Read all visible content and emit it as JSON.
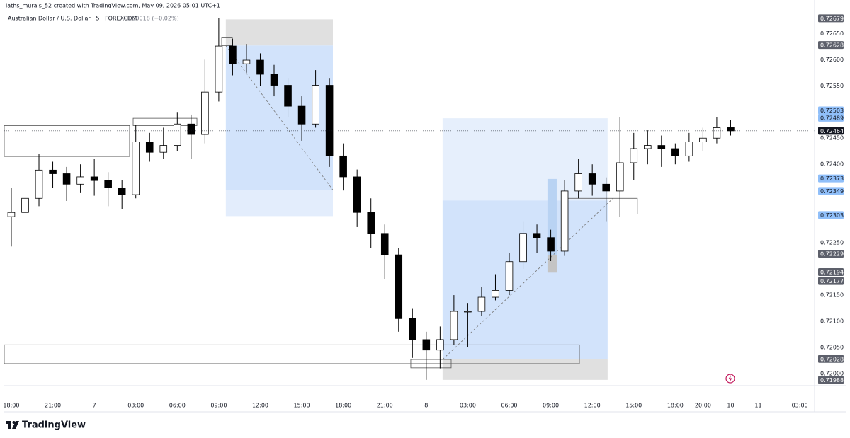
{
  "header": {
    "credit": "laths_murals_52 created with TradingView.com, May 09, 2026 05:01 UTC+1",
    "symbol": "Australian Dollar / U.S. Dollar · 5 · FOREXCOM",
    "change": "−0.00018 (−0.02%)"
  },
  "logo": "TradingView",
  "chart_data": {
    "type": "candlestick",
    "up_color": "#ffffff",
    "down_color": "#000000",
    "wick_color": "#000000",
    "x": [
      0,
      1,
      2,
      3,
      4,
      5,
      6,
      7,
      8,
      9,
      10,
      11,
      12,
      13,
      14,
      15,
      16,
      17,
      18,
      19,
      20,
      21,
      22,
      23,
      24,
      25,
      26,
      27,
      28,
      29,
      30,
      31,
      32,
      33,
      34,
      35,
      36,
      37,
      38,
      39,
      40,
      41,
      42,
      43,
      44,
      45,
      46,
      47,
      48,
      49,
      50,
      51,
      52
    ],
    "open": [
      0.723,
      0.72308,
      0.72335,
      0.72389,
      0.72382,
      0.72362,
      0.72376,
      0.72369,
      0.72355,
      0.72342,
      0.72443,
      0.72423,
      0.72436,
      0.72477,
      0.72457,
      0.72538,
      0.72626,
      0.72592,
      0.72599,
      0.72572,
      0.72551,
      0.72511,
      0.72477,
      0.72551,
      0.72416,
      0.72376,
      0.72308,
      0.72268,
      0.72227,
      0.72105,
      0.72065,
      0.72045,
      0.72065,
      0.72119,
      0.72119,
      0.72146,
      0.72159,
      0.72214,
      0.72268,
      0.7226,
      0.72234,
      0.72349,
      0.72382,
      0.72362,
      0.72349,
      0.72403,
      0.7243,
      0.72436,
      0.7243,
      0.72416,
      0.72443,
      0.7245,
      0.7247
    ],
    "high": [
      0.72355,
      0.7236,
      0.7242,
      0.72405,
      0.72395,
      0.724,
      0.7241,
      0.72385,
      0.7237,
      0.72475,
      0.7246,
      0.7247,
      0.725,
      0.72495,
      0.726,
      0.72679,
      0.7264,
      0.7263,
      0.72612,
      0.7259,
      0.72565,
      0.7253,
      0.7258,
      0.72565,
      0.7244,
      0.7239,
      0.72335,
      0.72285,
      0.7224,
      0.72125,
      0.7208,
      0.7209,
      0.7215,
      0.72135,
      0.72165,
      0.7219,
      0.7223,
      0.7229,
      0.72285,
      0.72275,
      0.7237,
      0.7241,
      0.724,
      0.72375,
      0.7249,
      0.7246,
      0.72465,
      0.72455,
      0.7244,
      0.7246,
      0.7247,
      0.7249,
      0.72485
    ],
    "low": [
      0.72243,
      0.7229,
      0.7232,
      0.72355,
      0.7233,
      0.72345,
      0.7234,
      0.7232,
      0.72315,
      0.72335,
      0.72405,
      0.7241,
      0.72425,
      0.7241,
      0.7244,
      0.7252,
      0.7257,
      0.72575,
      0.7255,
      0.7253,
      0.7249,
      0.72445,
      0.7247,
      0.72395,
      0.7235,
      0.7228,
      0.7224,
      0.7218,
      0.7208,
      0.7203,
      0.71988,
      0.7201,
      0.72055,
      0.7205,
      0.7211,
      0.7214,
      0.7215,
      0.722,
      0.7223,
      0.72215,
      0.72225,
      0.72335,
      0.7234,
      0.7229,
      0.723,
      0.7237,
      0.724,
      0.72395,
      0.724,
      0.72405,
      0.72425,
      0.7244,
      0.72455
    ],
    "close": [
      0.72308,
      0.72335,
      0.72389,
      0.72382,
      0.72362,
      0.72376,
      0.72369,
      0.72355,
      0.72342,
      0.72443,
      0.72423,
      0.72436,
      0.72477,
      0.72457,
      0.72538,
      0.72626,
      0.72592,
      0.72599,
      0.72572,
      0.72551,
      0.72511,
      0.72477,
      0.72551,
      0.72416,
      0.72376,
      0.72308,
      0.72268,
      0.72227,
      0.72105,
      0.72065,
      0.72045,
      0.72065,
      0.72119,
      0.72119,
      0.72146,
      0.72159,
      0.72214,
      0.72268,
      0.7226,
      0.72234,
      0.72349,
      0.72382,
      0.72362,
      0.72349,
      0.72403,
      0.7243,
      0.72436,
      0.7243,
      0.72416,
      0.72443,
      0.7245,
      0.7247,
      0.72464
    ],
    "xlim": [
      -0.51,
      58.07
    ],
    "ylim": [
      0.71977,
      0.72714
    ],
    "xticks": [
      {
        "value": 0,
        "label": "18:00"
      },
      {
        "value": 3,
        "label": "21:00"
      },
      {
        "value": 6,
        "label": "7"
      },
      {
        "value": 9,
        "label": "03:00"
      },
      {
        "value": 12,
        "label": "06:00"
      },
      {
        "value": 15,
        "label": "09:00"
      },
      {
        "value": 18,
        "label": "12:00"
      },
      {
        "value": 21,
        "label": "15:00"
      },
      {
        "value": 24,
        "label": "18:00"
      },
      {
        "value": 27,
        "label": "21:00"
      },
      {
        "value": 30,
        "label": "8"
      },
      {
        "value": 33,
        "label": "03:00"
      },
      {
        "value": 36,
        "label": "06:00"
      },
      {
        "value": 39,
        "label": "09:00"
      },
      {
        "value": 42,
        "label": "12:00"
      },
      {
        "value": 45,
        "label": "15:00"
      },
      {
        "value": 48,
        "label": "18:00"
      },
      {
        "value": 50,
        "label": "20:00"
      },
      {
        "value": 52,
        "label": "10"
      },
      {
        "value": 54,
        "label": "11"
      },
      {
        "value": 57,
        "label": "03:00"
      }
    ],
    "yticks": [
      {
        "value": 0.72,
        "label": "0.72000"
      },
      {
        "value": 0.7205,
        "label": "0.72050"
      },
      {
        "value": 0.721,
        "label": "0.72100"
      },
      {
        "value": 0.7215,
        "label": "0.72150"
      },
      {
        "value": 0.7225,
        "label": "0.72250"
      },
      {
        "value": 0.724,
        "label": "0.72400"
      },
      {
        "value": 0.7245,
        "label": "0.72450"
      },
      {
        "value": 0.7255,
        "label": "0.72550"
      },
      {
        "value": 0.726,
        "label": "0.72600"
      },
      {
        "value": 0.7265,
        "label": "0.72650"
      }
    ],
    "grid": false,
    "price_tags": [
      {
        "value": 0.72679,
        "color": "#5d606b",
        "text_color": "#ffffff"
      },
      {
        "value": 0.72628,
        "color": "#5d606b",
        "text_color": "#ffffff"
      },
      {
        "value": 0.72503,
        "color": "#90bff9",
        "text_color": "#131722"
      },
      {
        "value": 0.72489,
        "color": "#90bff9",
        "text_color": "#131722"
      },
      {
        "value": 0.72464,
        "color": "#131722",
        "text_color": "#ffffff",
        "current": true
      },
      {
        "value": 0.72373,
        "color": "#90bff9",
        "text_color": "#131722"
      },
      {
        "value": 0.72349,
        "color": "#90bff9",
        "text_color": "#131722"
      },
      {
        "value": 0.72303,
        "color": "#90bff9",
        "text_color": "#131722"
      },
      {
        "value": 0.72229,
        "color": "#5d606b",
        "text_color": "#ffffff"
      },
      {
        "value": 0.72194,
        "color": "#5d606b",
        "text_color": "#ffffff"
      },
      {
        "value": 0.72177,
        "color": "#5d606b",
        "text_color": "#ffffff"
      },
      {
        "value": 0.72028,
        "color": "#5d606b",
        "text_color": "#ffffff"
      },
      {
        "value": 0.71988,
        "color": "#5d606b",
        "text_color": "#ffffff"
      }
    ],
    "zones": [
      {
        "x": [
          15.51,
          23.25
        ],
        "y": [
          0.72627,
          0.72677
        ],
        "fill": "#e0e0e0"
      },
      {
        "x": [
          15.51,
          23.25
        ],
        "y": [
          0.72351,
          0.72627
        ],
        "fill": "#d2e3fb"
      },
      {
        "x": [
          15.51,
          23.25
        ],
        "y": [
          0.72301,
          0.72351
        ],
        "fill": "#e3edfc"
      },
      {
        "x": [
          31.18,
          43.11
        ],
        "y": [
          0.72331,
          0.72488
        ],
        "fill": "#e6effc"
      },
      {
        "x": [
          31.18,
          43.11
        ],
        "y": [
          0.72027,
          0.72331
        ],
        "fill": "#d2e3fb"
      },
      {
        "x": [
          31.18,
          43.11
        ],
        "y": [
          0.71988,
          0.72027
        ],
        "fill": "#e0e0e0"
      },
      {
        "x": [
          38.76,
          39.43
        ],
        "y": [
          0.72227,
          0.72372
        ],
        "fill": "#b9d3f3"
      },
      {
        "x": [
          38.76,
          39.43
        ],
        "y": [
          0.72193,
          0.72227
        ],
        "fill": "#c4c4c4"
      }
    ],
    "boxes": [
      {
        "x": [
          -0.51,
          8.55
        ],
        "y": [
          0.72415,
          0.72474
        ]
      },
      {
        "x": [
          8.81,
          13.42
        ],
        "y": [
          0.72474,
          0.72488
        ]
      },
      {
        "x": [
          -0.51,
          41.07
        ],
        "y": [
          0.72019,
          0.72055
        ]
      },
      {
        "x": [
          28.88,
          31.8
        ],
        "y": [
          0.72011,
          0.72027
        ]
      },
      {
        "x": [
          15.21,
          15.98
        ],
        "y": [
          0.72627,
          0.72643
        ]
      },
      {
        "x": [
          39.99,
          45.26
        ],
        "y": [
          0.72305,
          0.72335
        ]
      }
    ],
    "trend_lines": [
      {
        "x": [
          15.51,
          23.25
        ],
        "y": [
          0.72627,
          0.72351
        ]
      },
      {
        "x": [
          31.18,
          43.5
        ],
        "y": [
          0.72027,
          0.72335
        ]
      }
    ]
  }
}
